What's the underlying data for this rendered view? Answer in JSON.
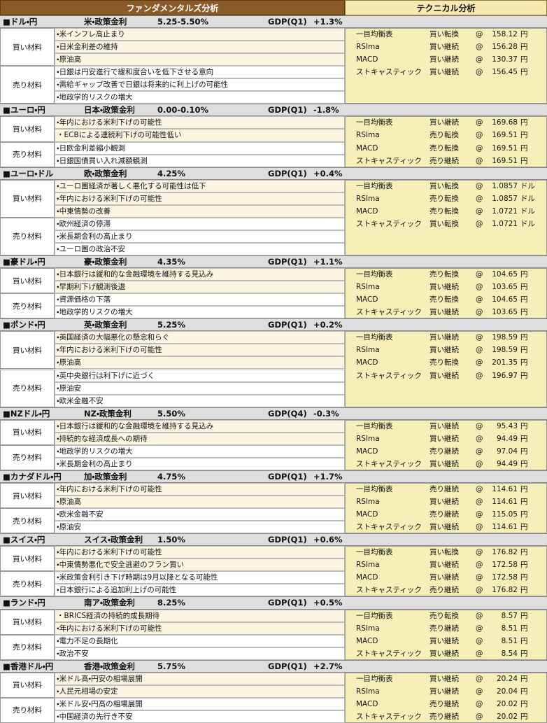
{
  "header": {
    "left": "ファンダメンタルズ分析",
    "right": "テクニカル分析"
  },
  "sections": [
    {
      "pair": "■ドル・円",
      "policy": "米・政策金利",
      "rate": "5.25-5.50%",
      "gdp_label": "GDP(Q1)",
      "gdp": "+1.3%",
      "buy_label": "買い材料",
      "buy": [
        "・米インフレ高止まり",
        "・日米金利差の維持",
        "・原油高"
      ],
      "sell_label": "売り材料",
      "sell": [
        "・日銀は円安進行で緩和度合いを低下させる意向",
        "・需給ギャップ改善で日銀は将来的に利上げの可能性",
        "・地政学的リスクの増大"
      ],
      "technical": [
        {
          "indicator": "一目均衡表",
          "signal": "買い転換",
          "at": "@",
          "price": "158.12",
          "unit": "円"
        },
        {
          "indicator": "RSIma",
          "signal": "買い継続",
          "at": "@",
          "price": "156.28",
          "unit": "円"
        },
        {
          "indicator": "MACD",
          "signal": "買い継続",
          "at": "@",
          "price": "130.37",
          "unit": "円"
        },
        {
          "indicator": "ストキャスティック",
          "signal": "買い継続",
          "at": "@",
          "price": "156.45",
          "unit": "円"
        }
      ]
    },
    {
      "pair": "■ユーロ・円",
      "policy": "日本・政策金利",
      "rate": "0.00-0.10%",
      "gdp_label": "GDP(Q1)",
      "gdp": "-1.8%",
      "buy_label": "買い材料",
      "buy": [
        "・年内における米利下げの可能性",
        "・ECBによる連続利下げの可能性低い"
      ],
      "sell_label": "売り材料",
      "sell": [
        "・日欧金利差縮小観測",
        "・日銀国債買い入れ減額観測"
      ],
      "technical": [
        {
          "indicator": "一目均衡表",
          "signal": "買い継続",
          "at": "@",
          "price": "169.68",
          "unit": "円"
        },
        {
          "indicator": "RSIma",
          "signal": "売り転換",
          "at": "@",
          "price": "169.51",
          "unit": "円"
        },
        {
          "indicator": "MACD",
          "signal": "売り転換",
          "at": "@",
          "price": "169.51",
          "unit": "円"
        },
        {
          "indicator": "ストキャスティック",
          "signal": "売り継続",
          "at": "@",
          "price": "169.51",
          "unit": "円"
        }
      ]
    },
    {
      "pair": "■ユーロ・ドル",
      "policy": "欧・政策金利",
      "rate": "4.25%",
      "gdp_label": "GDP(Q1)",
      "gdp": "+0.4%",
      "buy_label": "買い材料",
      "buy": [
        "・ユーロ圏経済が著しく悪化する可能性は低下",
        "・年内における米利下げの可能性",
        "・中東情勢の改善"
      ],
      "sell_label": "売り材料",
      "sell": [
        "・欧州経済の停滞",
        "・米長期金利の高止まり",
        "・ユーロ圏の政治不安"
      ],
      "technical": [
        {
          "indicator": "一目均衡表",
          "signal": "買い転換",
          "at": "@",
          "price": "1.0857",
          "unit": "ドル"
        },
        {
          "indicator": "RSIma",
          "signal": "売り転換",
          "at": "@",
          "price": "1.0857",
          "unit": "ドル"
        },
        {
          "indicator": "MACD",
          "signal": "売り転換",
          "at": "@",
          "price": "1.0721",
          "unit": "ドル"
        },
        {
          "indicator": "ストキャスティック",
          "signal": "買い転換",
          "at": "@",
          "price": "1.0721",
          "unit": "ドル"
        }
      ]
    },
    {
      "pair": "■豪ドル・円",
      "policy": "豪・政策金利",
      "rate": "4.35%",
      "gdp_label": "GDP(Q1)",
      "gdp": "+1.1%",
      "buy_label": "買い材料",
      "buy": [
        "・日本銀行は緩和的な金融環境を維持する見込み",
        "・早期利下げ観測後退"
      ],
      "sell_label": "売り材料",
      "sell": [
        "・資源価格の下落",
        "・地政学的リスクの増大"
      ],
      "technical": [
        {
          "indicator": "一目均衡表",
          "signal": "売り転換",
          "at": "@",
          "price": "104.65",
          "unit": "円"
        },
        {
          "indicator": "RSIma",
          "signal": "買い継続",
          "at": "@",
          "price": "103.65",
          "unit": "円"
        },
        {
          "indicator": "MACD",
          "signal": "売り転換",
          "at": "@",
          "price": "104.65",
          "unit": "円"
        },
        {
          "indicator": "ストキャスティック",
          "signal": "買い継続",
          "at": "@",
          "price": "103.65",
          "unit": "円"
        }
      ]
    },
    {
      "pair": "■ポンド・円",
      "policy": "英・政策金利",
      "rate": "5.25%",
      "gdp_label": "GDP(Q1)",
      "gdp": "+0.2%",
      "buy_label": "買い材料",
      "buy": [
        "・英国経済の大幅悪化の懸念和らぐ",
        "・年内における米利下げの可能性",
        "・原油高"
      ],
      "sell_label": "売り材料",
      "sell": [
        "・英中央銀行は利下げに近づく",
        "・原油安",
        "・欧米金融不安"
      ],
      "technical": [
        {
          "indicator": "一目均衡表",
          "signal": "買い継続",
          "at": "@",
          "price": "198.59",
          "unit": "円"
        },
        {
          "indicator": "RSIma",
          "signal": "買い継続",
          "at": "@",
          "price": "198.59",
          "unit": "円"
        },
        {
          "indicator": "MACD",
          "signal": "売り転換",
          "at": "@",
          "price": "201.35",
          "unit": "円"
        },
        {
          "indicator": "ストキャスティック",
          "signal": "買い継続",
          "at": "@",
          "price": "196.97",
          "unit": "円"
        }
      ]
    },
    {
      "pair": "■NZドル・円",
      "policy": "NZ・政策金利",
      "rate": "5.50%",
      "gdp_label": "GDP(Q4)",
      "gdp": "-0.3%",
      "buy_label": "買い材料",
      "buy": [
        "・日本銀行は緩和的な金融環境を維持する見込み",
        "・持続的な経済成長への期待"
      ],
      "sell_label": "売り材料",
      "sell": [
        "・地政学的リスクの増大",
        "・米長期金利の高止まり"
      ],
      "technical": [
        {
          "indicator": "一目均衡表",
          "signal": "買い継続",
          "at": "@",
          "price": "95.43",
          "unit": "円"
        },
        {
          "indicator": "RSIma",
          "signal": "買い継続",
          "at": "@",
          "price": "94.49",
          "unit": "円"
        },
        {
          "indicator": "MACD",
          "signal": "売り継続",
          "at": "@",
          "price": "97.04",
          "unit": "円"
        },
        {
          "indicator": "ストキャスティック",
          "signal": "買い継続",
          "at": "@",
          "price": "94.49",
          "unit": "円"
        }
      ]
    },
    {
      "pair": "■カナダドル・円",
      "policy": "加・政策金利",
      "rate": "4.75%",
      "gdp_label": "GDP(Q1)",
      "gdp": "+1.7%",
      "buy_label": "買い材料",
      "buy": [
        "・年内における米利下げの可能性",
        "・原油高"
      ],
      "sell_label": "売り材料",
      "sell": [
        "・欧米金融不安",
        "・原油安"
      ],
      "technical": [
        {
          "indicator": "一目均衡表",
          "signal": "売り継続",
          "at": "@",
          "price": "114.61",
          "unit": "円"
        },
        {
          "indicator": "RSIma",
          "signal": "買い継続",
          "at": "@",
          "price": "114.61",
          "unit": "円"
        },
        {
          "indicator": "MACD",
          "signal": "売り継続",
          "at": "@",
          "price": "115.05",
          "unit": "円"
        },
        {
          "indicator": "ストキャスティック",
          "signal": "買い継続",
          "at": "@",
          "price": "114.61",
          "unit": "円"
        }
      ]
    },
    {
      "pair": "■スイス・円",
      "policy": "スイス・政策金利",
      "rate": "1.50%",
      "gdp_label": "GDP(Q1)",
      "gdp": "+0.6%",
      "buy_label": "買い材料",
      "buy": [
        "・年内における米利下げの可能性",
        "・中東情勢悪化で安全逃避のフラン買い"
      ],
      "sell_label": "売り材料",
      "sell": [
        "・米政策金利引き下げ時期は9月以降となる可能性",
        "・日本銀行による追加利上げの可能性"
      ],
      "technical": [
        {
          "indicator": "一目均衡表",
          "signal": "買い転換",
          "at": "@",
          "price": "176.82",
          "unit": "円"
        },
        {
          "indicator": "RSIma",
          "signal": "買い継続",
          "at": "@",
          "price": "172.58",
          "unit": "円"
        },
        {
          "indicator": "MACD",
          "signal": "買い継続",
          "at": "@",
          "price": "172.58",
          "unit": "円"
        },
        {
          "indicator": "ストキャスティック",
          "signal": "売り継続",
          "at": "@",
          "price": "176.82",
          "unit": "円"
        }
      ]
    },
    {
      "pair": "■ランド・円",
      "policy": "南ア・政策金利",
      "rate": "8.25%",
      "gdp_label": "GDP(Q1)",
      "gdp": "+0.5%",
      "buy_label": "買い材料",
      "buy": [
        "・BRICS経済の持続的成長期待",
        "・年内における米利下げの可能性"
      ],
      "sell_label": "売り材料",
      "sell": [
        "・電力不足の長期化",
        "・政治不安"
      ],
      "technical": [
        {
          "indicator": "一目均衡表",
          "signal": "売り転換",
          "at": "@",
          "price": "8.57",
          "unit": "円"
        },
        {
          "indicator": "RSIma",
          "signal": "売り継続",
          "at": "@",
          "price": "8.51",
          "unit": "円"
        },
        {
          "indicator": "MACD",
          "signal": "買い継続",
          "at": "@",
          "price": "8.51",
          "unit": "円"
        },
        {
          "indicator": "ストキャスティック",
          "signal": "買い継続",
          "at": "@",
          "price": "8.54",
          "unit": "円"
        }
      ]
    },
    {
      "pair": "■香港ドル・円",
      "policy": "香港・政策金利",
      "rate": "5.75%",
      "gdp_label": "GDP(Q1)",
      "gdp": "+2.7%",
      "buy_label": "買い材料",
      "buy": [
        "・米ドル高・円安の相場展開",
        "・人民元相場の安定"
      ],
      "sell_label": "売り材料",
      "sell": [
        "・米ドル安・円高の相場展開",
        "・中国経済の先行き不安"
      ],
      "technical": [
        {
          "indicator": "一目均衡表",
          "signal": "買い継続",
          "at": "@",
          "price": "20.24",
          "unit": "円"
        },
        {
          "indicator": "RSIma",
          "signal": "買い継続",
          "at": "@",
          "price": "20.04",
          "unit": "円"
        },
        {
          "indicator": "MACD",
          "signal": "売り継続",
          "at": "@",
          "price": "20.02",
          "unit": "円"
        },
        {
          "indicator": "ストキャスティック",
          "signal": "売り継続",
          "at": "@",
          "price": "20.02",
          "unit": "円"
        }
      ]
    }
  ]
}
